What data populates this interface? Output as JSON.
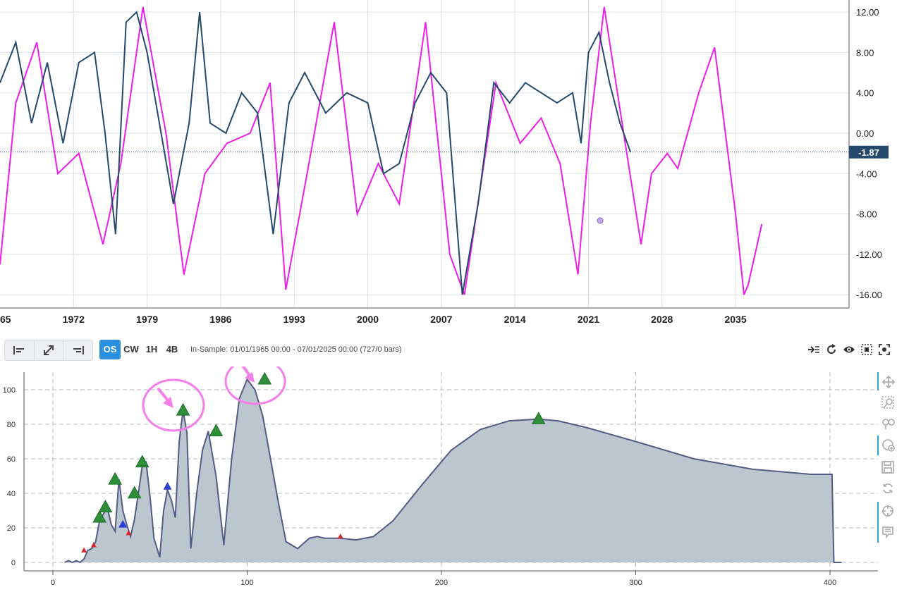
{
  "top_chart": {
    "y_ticks": [
      "12.00",
      "8.00",
      "4.00",
      "0.00",
      "-4.00",
      "-8.00",
      "-12.00",
      "-16.00"
    ],
    "x_ticks": [
      "65",
      "1972",
      "1979",
      "1986",
      "1993",
      "2000",
      "2007",
      "2014",
      "2021",
      "2028",
      "2035"
    ],
    "current_value": "-1.87",
    "price_color": "#24496b",
    "cycle_color": "#ee1ee8"
  },
  "toolbar": {
    "modes": [
      "OS",
      "CW",
      "1H",
      "4B"
    ],
    "active_mode": "OS",
    "in_sample": "In-Sample: 01/01/1965 00:00 - 07/01/2025 00:00 (727/0 bars)"
  },
  "chart_data": [
    {
      "type": "line",
      "series": [
        {
          "x": [
            1965,
            1966.5,
            1968,
            1969.5,
            1971,
            1972.5,
            1974,
            1975,
            1976,
            1977,
            1978,
            1979,
            1980,
            1981.5,
            1983,
            1984,
            1985,
            1986.5,
            1988,
            1989.5,
            1991,
            1992.5,
            1994,
            1996,
            1998,
            2000,
            2001.5,
            2003,
            2004.5,
            2006,
            2007.5,
            2009,
            2010.5,
            2012,
            2013.5,
            2015,
            2016.5,
            2018,
            2019.5,
            2020.3,
            2021,
            2022,
            2023,
            2024,
            2025
          ],
          "values": [
            5,
            9,
            1,
            7,
            -1,
            7,
            8,
            0,
            -10,
            11,
            12,
            8,
            2,
            -7,
            1,
            12,
            1,
            0,
            4,
            2,
            -10,
            3,
            6,
            2,
            4,
            3,
            -4,
            -3,
            3,
            6,
            4,
            -16,
            -7,
            5,
            3,
            5,
            4,
            3,
            4,
            -1,
            8,
            10,
            5,
            1,
            -1.87
          ]
        },
        {
          "x": [
            1965,
            1966.5,
            1968.5,
            1970.5,
            1972.5,
            1974.8,
            1976.5,
            1978.6,
            1980.8,
            1982.5,
            1984.5,
            1986.6,
            1988.8,
            1990.7,
            1992.2,
            1994.4,
            1996.8,
            1999,
            2001,
            2003,
            2005.5,
            2007.8,
            2009.2,
            2012.2,
            2014.5,
            2016.5,
            2018.3,
            2020,
            2021.2,
            2022.5,
            2024.5,
            2026,
            2027,
            2028.5,
            2029.5,
            2031.5,
            2033,
            2035,
            2035.8,
            2036.2,
            2037.5
          ],
          "values": [
            -13,
            3,
            9,
            -4,
            -2,
            -11,
            -3,
            12.5,
            0,
            -14,
            -4,
            -1,
            0,
            5,
            -15.5,
            -3,
            11,
            -8,
            -3,
            -7,
            11,
            -12,
            -16,
            5,
            -1,
            1.5,
            -3,
            -14,
            1,
            12.5,
            -1,
            -11,
            -4,
            -2,
            -3.5,
            4,
            8.5,
            -8,
            -16,
            -15,
            -9
          ]
        }
      ],
      "ylim": [
        -16,
        12
      ]
    },
    {
      "type": "area",
      "x": [
        6,
        8,
        10,
        12,
        14,
        16,
        18,
        20,
        22,
        24,
        26,
        28,
        30,
        32,
        34,
        36,
        38,
        40,
        42,
        44,
        46,
        48,
        50,
        52,
        55,
        57,
        59,
        61,
        63,
        65,
        67,
        69,
        71,
        74,
        77,
        80,
        84,
        88,
        92,
        96,
        100,
        104,
        108,
        112,
        116,
        120,
        126,
        132,
        136,
        140,
        148,
        156,
        165,
        175,
        190,
        205,
        220,
        235,
        250,
        260,
        275,
        300,
        330,
        360,
        390,
        401,
        402,
        406
      ],
      "values": [
        0,
        1,
        0,
        1,
        0,
        2,
        7,
        8,
        12,
        24,
        28,
        32,
        22,
        18,
        48,
        30,
        22,
        15,
        25,
        40,
        56,
        58,
        38,
        14,
        3,
        30,
        42,
        36,
        26,
        70,
        88,
        75,
        8,
        40,
        65,
        76,
        50,
        10,
        60,
        95,
        106,
        100,
        85,
        60,
        35,
        12,
        8,
        14,
        15,
        14,
        14,
        13,
        15,
        24,
        45,
        65,
        77,
        82,
        83,
        82,
        78,
        70,
        60,
        54,
        51,
        51,
        0,
        0
      ],
      "markers": [
        {
          "x": 16,
          "y": 7,
          "color": "red"
        },
        {
          "x": 21,
          "y": 10,
          "color": "red"
        },
        {
          "x": 24,
          "y": 26,
          "color": "green"
        },
        {
          "x": 27,
          "y": 32,
          "color": "green"
        },
        {
          "x": 32,
          "y": 48,
          "color": "green"
        },
        {
          "x": 36,
          "y": 22,
          "color": "blue"
        },
        {
          "x": 39,
          "y": 17,
          "color": "red"
        },
        {
          "x": 42,
          "y": 40,
          "color": "green"
        },
        {
          "x": 46,
          "y": 58,
          "color": "green"
        },
        {
          "x": 59,
          "y": 44,
          "color": "blue"
        },
        {
          "x": 67,
          "y": 88,
          "color": "green"
        },
        {
          "x": 84,
          "y": 76,
          "color": "green"
        },
        {
          "x": 109,
          "y": 106,
          "color": "green"
        },
        {
          "x": 148,
          "y": 15,
          "color": "red"
        },
        {
          "x": 250,
          "y": 83,
          "color": "green"
        }
      ],
      "x_ticks": [
        0,
        100,
        200,
        300,
        400
      ],
      "y_ticks": [
        0,
        20,
        40,
        60,
        80,
        100
      ],
      "xlim": [
        -20,
        425
      ],
      "ylim": [
        -3,
        112
      ]
    }
  ]
}
